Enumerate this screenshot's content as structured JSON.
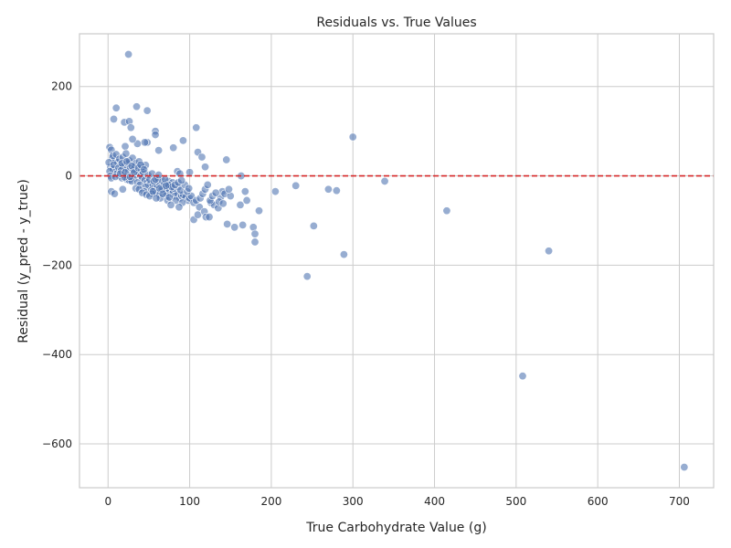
{
  "chart_data": {
    "type": "scatter",
    "title": "Residuals vs. True Values",
    "xlabel": "True Carbohydrate Value (g)",
    "ylabel": "Residual (y_pred - y_true)",
    "xlim": [
      -35,
      742
    ],
    "ylim": [
      -698,
      318
    ],
    "xticks": [
      0,
      100,
      200,
      300,
      400,
      500,
      600,
      700
    ],
    "yticks": [
      -600,
      -400,
      -200,
      0,
      200
    ],
    "xtick_labels": [
      "0",
      "100",
      "200",
      "300",
      "400",
      "500",
      "600",
      "700"
    ],
    "ytick_labels": [
      "−600",
      "−400",
      "−200",
      "0",
      "200"
    ],
    "grid": true,
    "reference_line": {
      "y": 0,
      "color": "#d62728",
      "style": "dashed"
    },
    "point_color": "#4c72b0",
    "points": [
      [
        25,
        272
      ],
      [
        35,
        155
      ],
      [
        10,
        152
      ],
      [
        48,
        146
      ],
      [
        300,
        87
      ],
      [
        108,
        108
      ],
      [
        7,
        127
      ],
      [
        20,
        120
      ],
      [
        26,
        122
      ],
      [
        28,
        108
      ],
      [
        58,
        100
      ],
      [
        58,
        92
      ],
      [
        92,
        79
      ],
      [
        36,
        72
      ],
      [
        30,
        82
      ],
      [
        48,
        75
      ],
      [
        45,
        75
      ],
      [
        80,
        63
      ],
      [
        62,
        57
      ],
      [
        110,
        53
      ],
      [
        2,
        64
      ],
      [
        4,
        58
      ],
      [
        21,
        66
      ],
      [
        145,
        36
      ],
      [
        115,
        42
      ],
      [
        119,
        20
      ],
      [
        85,
        10
      ],
      [
        88,
        5
      ],
      [
        100,
        8
      ],
      [
        5,
        40
      ],
      [
        8,
        35
      ],
      [
        12,
        30
      ],
      [
        15,
        25
      ],
      [
        18,
        20
      ],
      [
        22,
        15
      ],
      [
        25,
        10
      ],
      [
        28,
        5
      ],
      [
        30,
        0
      ],
      [
        32,
        -5
      ],
      [
        3,
        20
      ],
      [
        6,
        15
      ],
      [
        9,
        10
      ],
      [
        11,
        5
      ],
      [
        14,
        0
      ],
      [
        17,
        -5
      ],
      [
        19,
        2
      ],
      [
        23,
        -8
      ],
      [
        26,
        -10
      ],
      [
        29,
        -12
      ],
      [
        35,
        10
      ],
      [
        38,
        5
      ],
      [
        40,
        0
      ],
      [
        42,
        -5
      ],
      [
        45,
        -10
      ],
      [
        48,
        -15
      ],
      [
        50,
        -20
      ],
      [
        52,
        -18
      ],
      [
        55,
        -22
      ],
      [
        57,
        -25
      ],
      [
        60,
        -20
      ],
      [
        62,
        -15
      ],
      [
        65,
        -25
      ],
      [
        68,
        -30
      ],
      [
        70,
        -28
      ],
      [
        72,
        -35
      ],
      [
        75,
        -30
      ],
      [
        78,
        -40
      ],
      [
        80,
        -35
      ],
      [
        82,
        -45
      ],
      [
        85,
        -40
      ],
      [
        88,
        -50
      ],
      [
        90,
        -45
      ],
      [
        92,
        -42
      ],
      [
        95,
        -48
      ],
      [
        98,
        -55
      ],
      [
        100,
        -50
      ],
      [
        102,
        -45
      ],
      [
        105,
        -60
      ],
      [
        108,
        -55
      ],
      [
        1,
        30
      ],
      [
        2,
        10
      ],
      [
        3,
        0
      ],
      [
        4,
        -5
      ],
      [
        6,
        45
      ],
      [
        7,
        25
      ],
      [
        9,
        -2
      ],
      [
        13,
        18
      ],
      [
        16,
        12
      ],
      [
        20,
        -3
      ],
      [
        24,
        28
      ],
      [
        27,
        18
      ],
      [
        31,
        14
      ],
      [
        33,
        22
      ],
      [
        36,
        -15
      ],
      [
        39,
        -20
      ],
      [
        41,
        12
      ],
      [
        43,
        8
      ],
      [
        46,
        -25
      ],
      [
        49,
        2
      ],
      [
        51,
        -8
      ],
      [
        53,
        -32
      ],
      [
        56,
        -12
      ],
      [
        59,
        -38
      ],
      [
        61,
        -5
      ],
      [
        63,
        -42
      ],
      [
        66,
        -10
      ],
      [
        69,
        -18
      ],
      [
        71,
        -45
      ],
      [
        74,
        -12
      ],
      [
        76,
        -22
      ],
      [
        79,
        -15
      ],
      [
        81,
        -28
      ],
      [
        83,
        -55
      ],
      [
        86,
        -25
      ],
      [
        89,
        -32
      ],
      [
        91,
        -60
      ],
      [
        94,
        -20
      ],
      [
        97,
        -35
      ],
      [
        99,
        -28
      ],
      [
        10,
        48
      ],
      [
        14,
        38
      ],
      [
        18,
        42
      ],
      [
        22,
        50
      ],
      [
        26,
        34
      ],
      [
        30,
        40
      ],
      [
        34,
        28
      ],
      [
        38,
        32
      ],
      [
        42,
        20
      ],
      [
        46,
        24
      ],
      [
        4,
        -35
      ],
      [
        8,
        -40
      ],
      [
        18,
        -30
      ],
      [
        34,
        -28
      ],
      [
        44,
        -35
      ],
      [
        54,
        -40
      ],
      [
        64,
        -50
      ],
      [
        73,
        -55
      ],
      [
        77,
        -65
      ],
      [
        87,
        -70
      ],
      [
        105,
        -98
      ],
      [
        110,
        -87
      ],
      [
        112,
        -70
      ],
      [
        118,
        -80
      ],
      [
        120,
        -92
      ],
      [
        124,
        -92
      ],
      [
        126,
        -60
      ],
      [
        130,
        -65
      ],
      [
        135,
        -72
      ],
      [
        138,
        -48
      ],
      [
        140,
        -35
      ],
      [
        143,
        -40
      ],
      [
        146,
        -108
      ],
      [
        150,
        -45
      ],
      [
        155,
        -115
      ],
      [
        162,
        -65
      ],
      [
        165,
        -110
      ],
      [
        168,
        -35
      ],
      [
        170,
        -55
      ],
      [
        178,
        -115
      ],
      [
        180,
        -130
      ],
      [
        180,
        -148
      ],
      [
        185,
        -78
      ],
      [
        163,
        0
      ],
      [
        205,
        -35
      ],
      [
        230,
        -22
      ],
      [
        270,
        -30
      ],
      [
        280,
        -33
      ],
      [
        339,
        -12
      ],
      [
        415,
        -78
      ],
      [
        244,
        -225
      ],
      [
        252,
        -112
      ],
      [
        289,
        -176
      ],
      [
        540,
        -168
      ],
      [
        508,
        -448
      ],
      [
        706,
        -652
      ],
      [
        113,
        -50
      ],
      [
        116,
        -40
      ],
      [
        119,
        -30
      ],
      [
        122,
        -20
      ],
      [
        125,
        -55
      ],
      [
        128,
        -45
      ],
      [
        132,
        -38
      ],
      [
        136,
        -58
      ],
      [
        141,
        -62
      ],
      [
        148,
        -30
      ],
      [
        54,
        5
      ],
      [
        58,
        -8
      ],
      [
        62,
        2
      ],
      [
        66,
        -30
      ],
      [
        70,
        -8
      ],
      [
        74,
        -20
      ],
      [
        78,
        -25
      ],
      [
        82,
        -20
      ],
      [
        86,
        -15
      ],
      [
        90,
        -10
      ],
      [
        38,
        -30
      ],
      [
        42,
        -38
      ],
      [
        47,
        -42
      ],
      [
        51,
        -45
      ],
      [
        55,
        -35
      ],
      [
        59,
        -50
      ],
      [
        63,
        -28
      ],
      [
        67,
        -40
      ],
      [
        71,
        -22
      ],
      [
        75,
        -48
      ],
      [
        15,
        5
      ],
      [
        17,
        28
      ],
      [
        21,
        8
      ],
      [
        23,
        32
      ],
      [
        27,
        -2
      ],
      [
        29,
        22
      ],
      [
        32,
        8
      ],
      [
        37,
        18
      ],
      [
        40,
        25
      ],
      [
        44,
        14
      ]
    ]
  }
}
